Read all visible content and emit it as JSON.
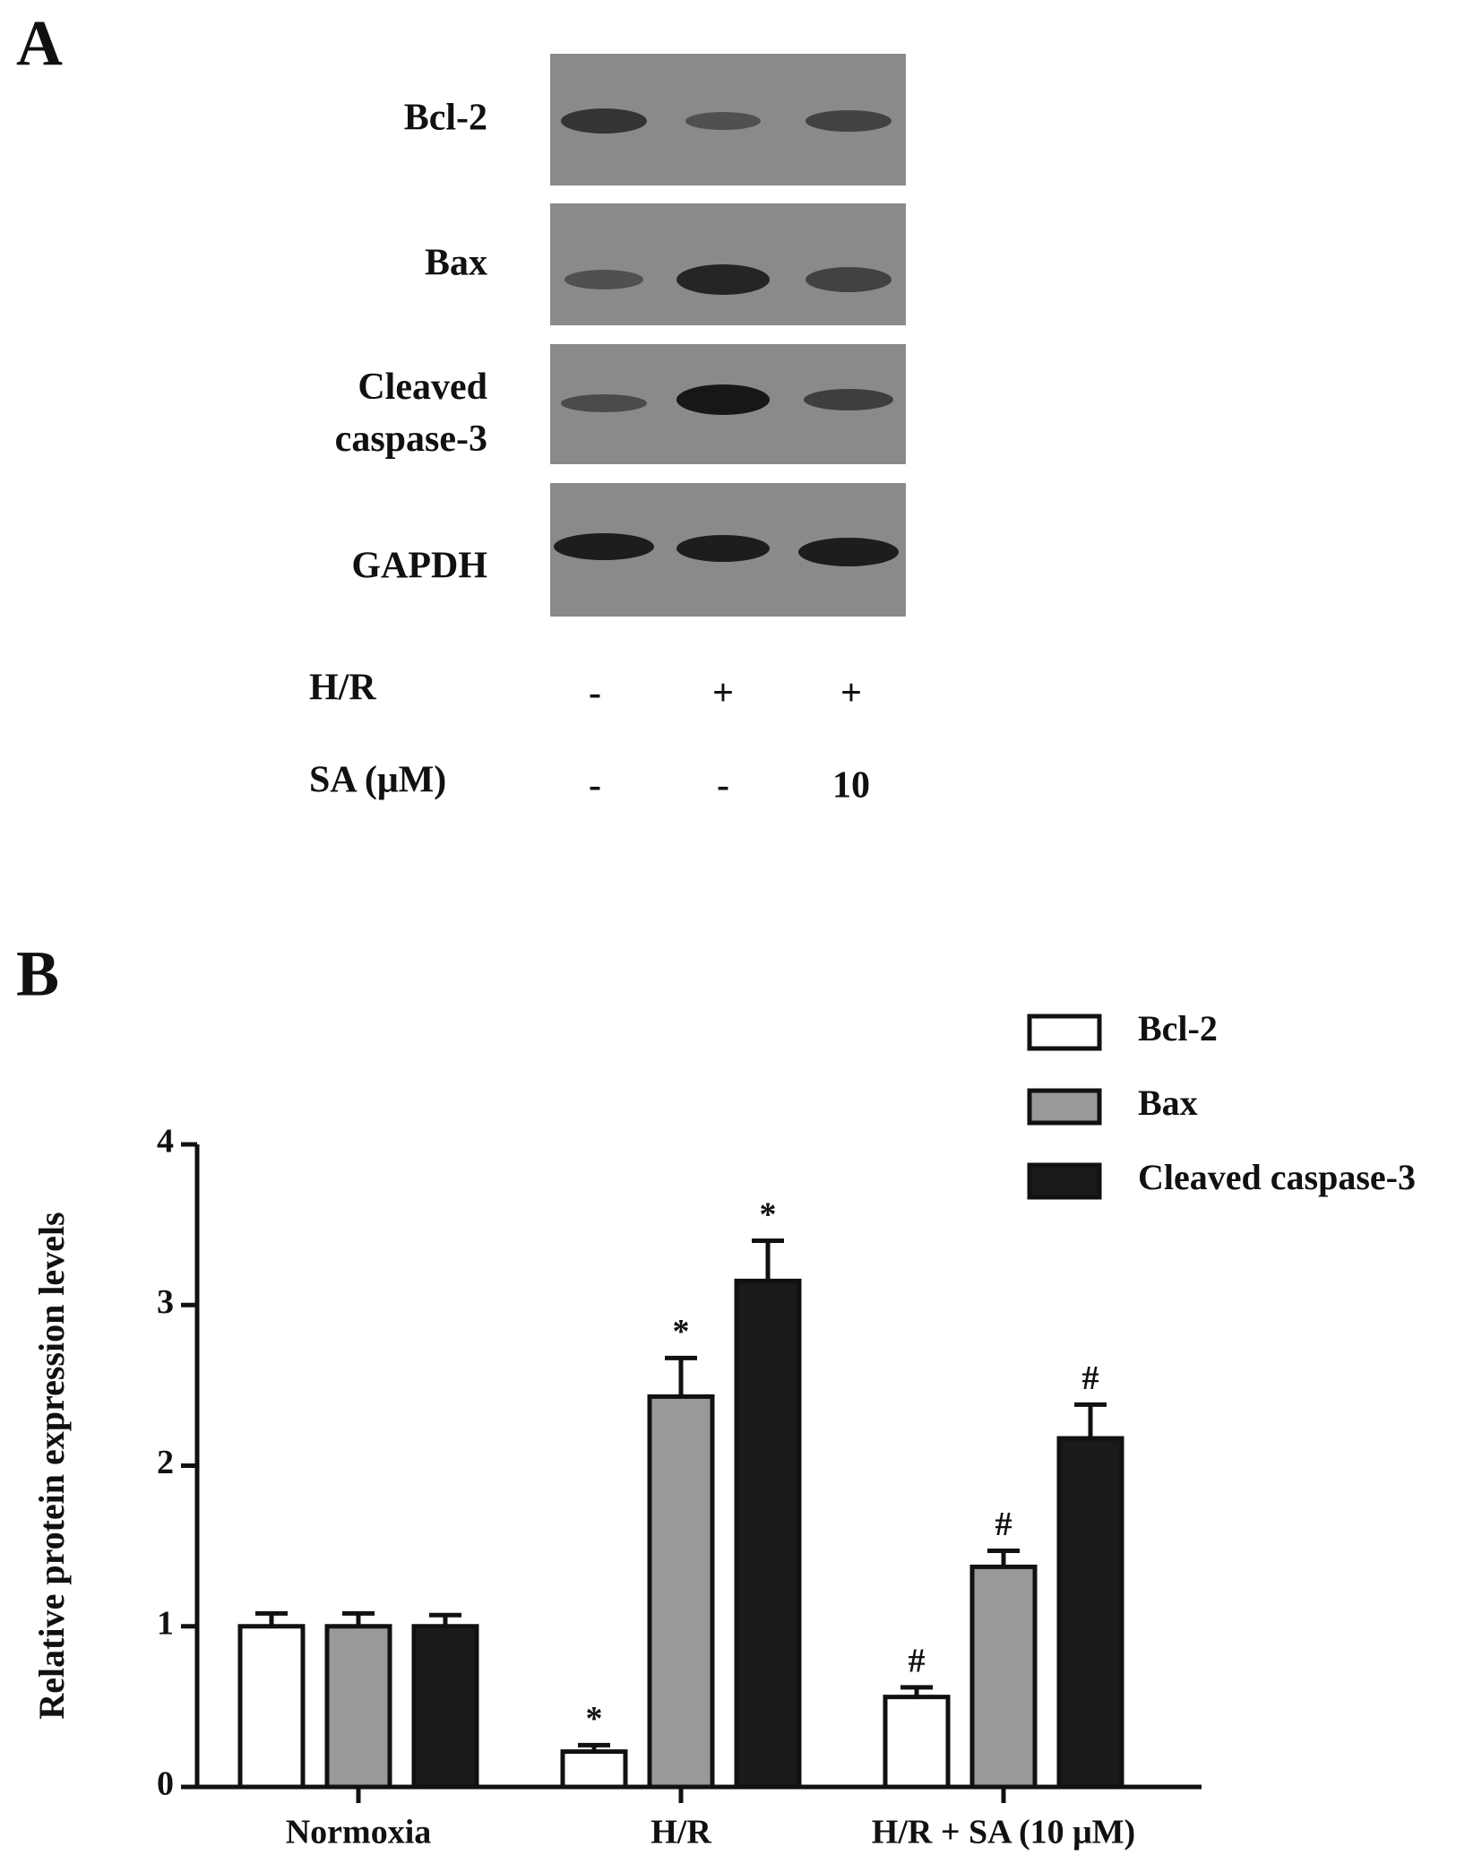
{
  "panel_a": {
    "label": "A",
    "blots": [
      "Bcl-2",
      "Bax",
      "Cleaved caspase-3",
      "GAPDH"
    ],
    "conditions": [
      {
        "name": "H/R",
        "values": [
          "-",
          "+",
          "+"
        ]
      },
      {
        "name": "SA (μM)",
        "values": [
          "-",
          "-",
          10
        ]
      }
    ]
  },
  "panel_b_label": "B",
  "chart_data": {
    "type": "bar",
    "y_label": "Relative protein expression levels",
    "categories": [
      "Normoxia",
      "H/R",
      "H/R + SA (10 μM)"
    ],
    "series": [
      {
        "name": "Bcl-2",
        "color": "#ffffff",
        "values": [
          1.0,
          0.22,
          0.56
        ],
        "errors": [
          0.08,
          0.04,
          0.06
        ],
        "annotations": [
          null,
          "*",
          "#"
        ]
      },
      {
        "name": "Bax",
        "color": "#999999",
        "values": [
          1.0,
          2.43,
          1.37
        ],
        "errors": [
          0.08,
          0.24,
          0.1
        ],
        "annotations": [
          null,
          "*",
          "#"
        ]
      },
      {
        "name": "Cleaved caspase-3",
        "color": "#1a1a1a",
        "values": [
          1.0,
          3.15,
          2.17
        ],
        "errors": [
          0.07,
          0.25,
          0.21
        ],
        "annotations": [
          null,
          "*",
          "#"
        ]
      }
    ],
    "ylim": [
      0,
      4
    ],
    "yticks": [
      0,
      1,
      2,
      3,
      4
    ],
    "grid": false,
    "legend": "top-right"
  }
}
